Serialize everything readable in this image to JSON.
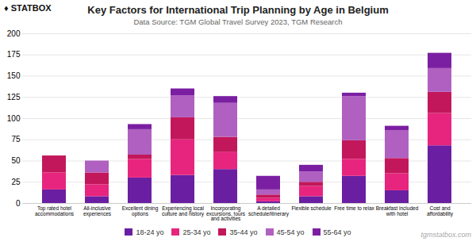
{
  "chart_data": {
    "type": "bar",
    "title": "Key Factors for International Trip Planning by Age in Belgium",
    "subtitle": "Data Source: TGM Global Travel Survey 2023, TGM Research",
    "annotations": [
      "♦ STATBOX",
      "tgmstatbox.com"
    ],
    "categories": [
      "Top rated hotel\naccommodations",
      "All-inclusive\nexperiences",
      "Excellent dining\noptions",
      "Experiencing local\nculture and history",
      "Incorporating\nexcursions, tours\nand activities",
      "A detailed\nschedule/itinerary",
      "Flexible schedule",
      "Free time to relax",
      "Breakfast included\nwith hotel",
      "Cost and\naffordability"
    ],
    "series": [
      {
        "name": "18-24 yo",
        "color": "#6a1fa2",
        "values": [
          16,
          8,
          30,
          33,
          40,
          2,
          8,
          32,
          15,
          68
        ]
      },
      {
        "name": "25-34 yo",
        "color": "#e8257e",
        "values": [
          20,
          14,
          22,
          42,
          20,
          4,
          12,
          20,
          20,
          38
        ]
      },
      {
        "name": "35-44 yo",
        "color": "#c2185b",
        "values": [
          20,
          14,
          5,
          26,
          18,
          4,
          5,
          22,
          18,
          25
        ]
      },
      {
        "name": "45-54 yo",
        "color": "#b060c0",
        "values": [
          0,
          14,
          30,
          26,
          40,
          6,
          12,
          52,
          33,
          28
        ]
      },
      {
        "name": "55-64 yo",
        "color": "#7b1fa2",
        "values": [
          0,
          0,
          6,
          8,
          8,
          16,
          8,
          4,
          5,
          18
        ]
      }
    ],
    "stacked": true,
    "ylim": [
      0,
      200
    ],
    "yticks": [
      0,
      25,
      50,
      75,
      100,
      125,
      150,
      175,
      200
    ],
    "grid": true,
    "legend": "bottom"
  }
}
